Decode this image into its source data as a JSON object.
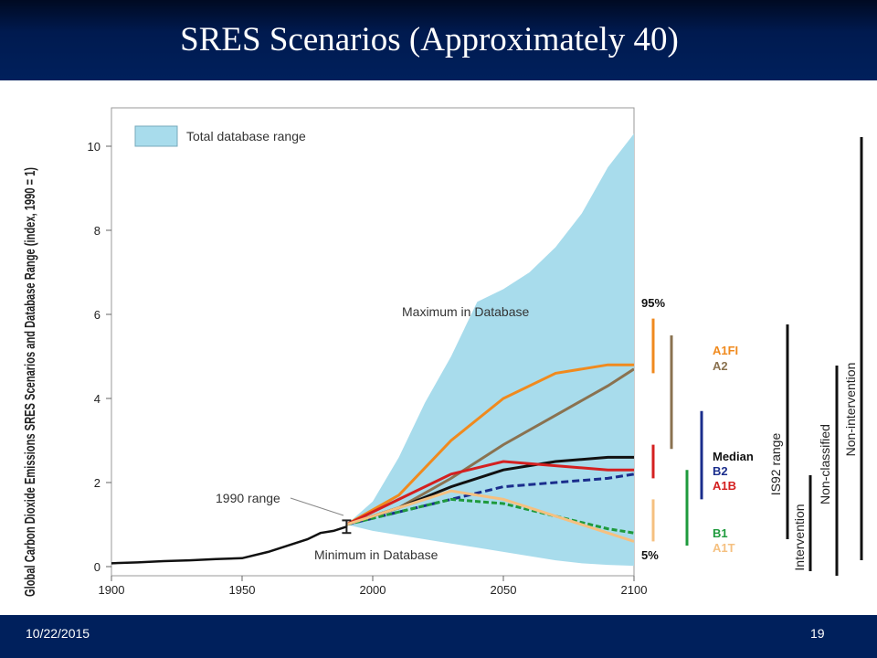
{
  "slide": {
    "title": "SRES Scenarios (Approximately 40)",
    "date": "10/22/2015",
    "page_number": "19"
  },
  "colors": {
    "header_bg": "#00205c",
    "database_range_fill": "#a8dcec",
    "a1fi": "#f08a1e",
    "a2": "#8a7250",
    "median": "#111111",
    "b2": "#1a2d8c",
    "a1b": "#d42020",
    "b1": "#1e9a3c",
    "a1t": "#f5c080"
  },
  "chart_data": {
    "type": "area",
    "ylabel": "Global Carbon Dioxide Emissions SRES Scenarios and Database Range (index, 1990 = 1)",
    "xlim": [
      1900,
      2100
    ],
    "ylim": [
      0,
      10.5
    ],
    "x_ticks": [
      "1900",
      "1950",
      "2000",
      "2050",
      "2100"
    ],
    "y_ticks": [
      "0",
      "2",
      "4",
      "6",
      "8",
      "10"
    ],
    "legend": {
      "label": "Total database range",
      "position": "top-left"
    },
    "annotations": {
      "max": "Maximum in Database",
      "min": "Minimum in  Database",
      "range_1990": "1990 range",
      "p95": "95%",
      "p5": "5%"
    },
    "database_range": {
      "x": [
        1990,
        2000,
        2010,
        2020,
        2030,
        2040,
        2050,
        2060,
        2070,
        2080,
        2090,
        2100
      ],
      "max": [
        1.0,
        1.55,
        2.6,
        3.9,
        5.0,
        6.3,
        6.6,
        7.0,
        7.6,
        8.4,
        9.5,
        10.3
      ],
      "min": [
        1.0,
        0.85,
        0.75,
        0.65,
        0.55,
        0.45,
        0.35,
        0.25,
        0.15,
        0.08,
        0.04,
        0.02
      ]
    },
    "historical": {
      "x": [
        1900,
        1910,
        1920,
        1930,
        1940,
        1950,
        1960,
        1970,
        1975,
        1980,
        1985,
        1990
      ],
      "y": [
        0.08,
        0.1,
        0.13,
        0.15,
        0.18,
        0.2,
        0.35,
        0.55,
        0.65,
        0.8,
        0.85,
        0.95
      ]
    },
    "series_x": [
      1990,
      2010,
      2030,
      2050,
      2070,
      2090,
      2100
    ],
    "series": [
      {
        "name": "A1FI",
        "color": "#f08a1e",
        "values": [
          1.0,
          1.7,
          3.0,
          4.0,
          4.6,
          4.8,
          4.8
        ]
      },
      {
        "name": "A2",
        "color": "#8a7250",
        "values": [
          1.0,
          1.4,
          2.1,
          2.9,
          3.6,
          4.3,
          4.7
        ]
      },
      {
        "name": "Median",
        "color": "#111111",
        "values": [
          1.0,
          1.4,
          1.9,
          2.3,
          2.5,
          2.6,
          2.6
        ]
      },
      {
        "name": "B2",
        "color": "#1a2d8c",
        "values": [
          1.0,
          1.3,
          1.6,
          1.9,
          2.0,
          2.1,
          2.2
        ]
      },
      {
        "name": "A1B",
        "color": "#d42020",
        "values": [
          1.0,
          1.6,
          2.2,
          2.5,
          2.4,
          2.3,
          2.3
        ]
      },
      {
        "name": "B1",
        "color": "#1e9a3c",
        "values": [
          1.0,
          1.3,
          1.6,
          1.5,
          1.2,
          0.9,
          0.8
        ]
      },
      {
        "name": "A1T",
        "color": "#f5c080",
        "values": [
          1.0,
          1.4,
          1.8,
          1.6,
          1.2,
          0.8,
          0.6
        ]
      }
    ],
    "right_side": {
      "ranges": [
        {
          "name": "A1FI/A2",
          "lower": 4.6,
          "upper": 5.9,
          "color": "#f08a1e"
        },
        {
          "name": "A2",
          "lower": 2.8,
          "upper": 5.5,
          "color": "#8a7250"
        },
        {
          "name": "A1B",
          "lower": 2.1,
          "upper": 2.9,
          "color": "#d42020"
        },
        {
          "name": "B2",
          "lower": 1.6,
          "upper": 3.7,
          "color": "#1a2d8c"
        },
        {
          "name": "A1T",
          "lower": 0.6,
          "upper": 1.6,
          "color": "#f5c080"
        },
        {
          "name": "B1",
          "lower": 0.5,
          "upper": 2.3,
          "color": "#1e9a3c"
        }
      ],
      "labels": {
        "is92": "IS92 range",
        "intervention": "Intervention",
        "nonclassified": "Non-classified",
        "nonintervention": "Non-intervention"
      }
    }
  }
}
